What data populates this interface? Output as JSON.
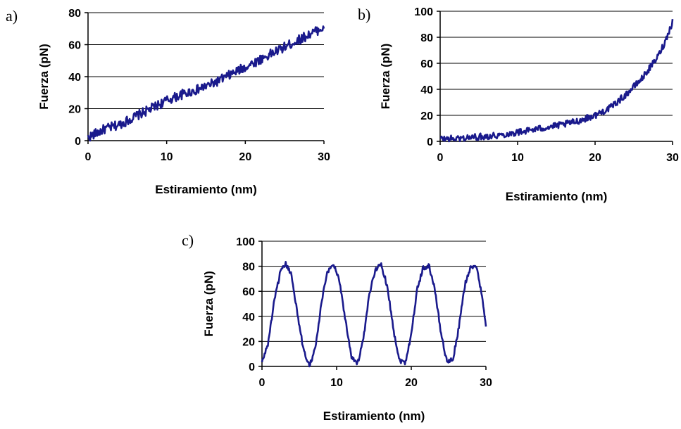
{
  "chart_data": [
    {
      "panel_label": "a)",
      "type": "line",
      "xlabel": "Estiramiento (nm)",
      "ylabel": "Fuerza (pN)",
      "xlim": [
        0,
        30
      ],
      "ylim": [
        0,
        80
      ],
      "x_ticks": [
        "0",
        "10",
        "20",
        "30"
      ],
      "y_ticks": [
        "0",
        "20",
        "40",
        "60",
        "80"
      ],
      "grid": "horizontal",
      "legend": "none",
      "series": [
        {
          "color": "#1a1a8c",
          "x": [
            0,
            2,
            4,
            6,
            8,
            10,
            12,
            14,
            16,
            18,
            20,
            22,
            24,
            26,
            28,
            30
          ],
          "y": [
            2,
            7,
            10,
            15,
            20,
            25,
            29,
            32,
            36,
            41,
            46,
            51,
            56,
            61,
            66,
            71
          ],
          "noise": 3
        }
      ]
    },
    {
      "panel_label": "b)",
      "type": "line",
      "xlabel": "Estiramiento (nm)",
      "ylabel": "Fuerza (pN)",
      "xlim": [
        0,
        30
      ],
      "ylim": [
        0,
        100
      ],
      "x_ticks": [
        "0",
        "10",
        "20",
        "30"
      ],
      "y_ticks": [
        "0",
        "20",
        "40",
        "60",
        "80",
        "100"
      ],
      "grid": "horizontal",
      "legend": "none",
      "series": [
        {
          "color": "#1a1a8c",
          "x": [
            0,
            2,
            4,
            6,
            8,
            10,
            12,
            14,
            16,
            18,
            20,
            22,
            24,
            26,
            28,
            29,
            30
          ],
          "y": [
            2,
            2,
            3,
            4,
            5,
            7,
            9,
            11,
            13,
            16,
            20,
            26,
            36,
            48,
            64,
            76,
            92
          ],
          "noise": 2.5
        }
      ]
    },
    {
      "panel_label": "c)",
      "type": "line",
      "xlabel": "Estiramiento (nm)",
      "ylabel": "Fuerza (pN)",
      "xlim": [
        0,
        30
      ],
      "ylim": [
        0,
        100
      ],
      "x_ticks": [
        "0",
        "10",
        "20",
        "30"
      ],
      "y_ticks": [
        "0",
        "20",
        "40",
        "60",
        "80",
        "100"
      ],
      "grid": "horizontal",
      "legend": "none",
      "series": [
        {
          "color": "#1a1a8c",
          "x": [
            0,
            0.8,
            1.6,
            2.4,
            3.2,
            4.0,
            4.8,
            5.6,
            6.4,
            7.2,
            8.0,
            8.8,
            9.6,
            10.4,
            11.2,
            12.0,
            12.8,
            13.6,
            14.4,
            15.2,
            16.0,
            16.8,
            17.6,
            18.4,
            19.2,
            20.0,
            20.8,
            21.6,
            22.4,
            23.2,
            24.0,
            24.8,
            25.6,
            26.4,
            27.2,
            28.0,
            28.8,
            29.6,
            30.0
          ],
          "y": [
            3,
            18,
            50,
            74,
            82,
            72,
            40,
            12,
            1,
            16,
            52,
            76,
            82,
            68,
            36,
            8,
            2,
            22,
            58,
            78,
            81,
            64,
            30,
            5,
            3,
            26,
            62,
            79,
            80,
            60,
            26,
            3,
            6,
            32,
            66,
            80,
            78,
            52,
            33
          ],
          "noise": 2
        }
      ]
    }
  ]
}
